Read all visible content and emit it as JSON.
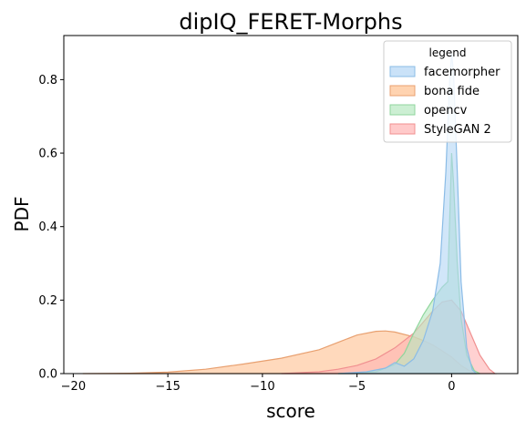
{
  "chart_data": {
    "type": "area",
    "title": "dipIQ_FERET-Morphs",
    "xlabel": "score",
    "ylabel": "PDF",
    "xlim": [
      -20.5,
      3.5
    ],
    "ylim": [
      0,
      0.92
    ],
    "xticks": [
      -20,
      -15,
      -10,
      -5,
      0
    ],
    "yticks": [
      0.0,
      0.2,
      0.4,
      0.6,
      0.8
    ],
    "xtick_labels": [
      "−20",
      "−15",
      "−10",
      "−5",
      "0"
    ],
    "ytick_labels": [
      "0.0",
      "0.2",
      "0.4",
      "0.6",
      "0.8"
    ],
    "legend": {
      "title": "legend",
      "position": "top-right"
    },
    "series": [
      {
        "name": "bona fide",
        "fill": "#ffc08f",
        "stroke": "#e8a070",
        "points": [
          [
            -19.5,
            0
          ],
          [
            -17,
            0.001
          ],
          [
            -15,
            0.004
          ],
          [
            -13,
            0.012
          ],
          [
            -11,
            0.026
          ],
          [
            -9,
            0.042
          ],
          [
            -7,
            0.065
          ],
          [
            -6,
            0.085
          ],
          [
            -5,
            0.105
          ],
          [
            -4,
            0.115
          ],
          [
            -3.5,
            0.116
          ],
          [
            -3,
            0.113
          ],
          [
            -2,
            0.1
          ],
          [
            -1.5,
            0.09
          ],
          [
            -1,
            0.078
          ],
          [
            -0.5,
            0.062
          ],
          [
            0,
            0.045
          ],
          [
            0.5,
            0.022
          ],
          [
            1,
            0.006
          ],
          [
            1.3,
            0
          ]
        ]
      },
      {
        "name": "StyleGAN 2",
        "fill": "#ffb3b3",
        "stroke": "#f09090",
        "points": [
          [
            -9,
            0
          ],
          [
            -7,
            0.005
          ],
          [
            -6,
            0.012
          ],
          [
            -5,
            0.022
          ],
          [
            -4,
            0.04
          ],
          [
            -3,
            0.07
          ],
          [
            -2,
            0.11
          ],
          [
            -1.5,
            0.14
          ],
          [
            -1,
            0.17
          ],
          [
            -0.5,
            0.195
          ],
          [
            0,
            0.2
          ],
          [
            0.5,
            0.17
          ],
          [
            1,
            0.11
          ],
          [
            1.5,
            0.05
          ],
          [
            2,
            0.012
          ],
          [
            2.3,
            0
          ]
        ]
      },
      {
        "name": "opencv",
        "fill": "#b6e8c0",
        "stroke": "#8fd69c",
        "points": [
          [
            -6,
            0
          ],
          [
            -4,
            0.005
          ],
          [
            -3,
            0.025
          ],
          [
            -2.5,
            0.055
          ],
          [
            -2,
            0.11
          ],
          [
            -1.5,
            0.16
          ],
          [
            -1,
            0.2
          ],
          [
            -0.5,
            0.235
          ],
          [
            -0.2,
            0.25
          ],
          [
            -0.1,
            0.42
          ],
          [
            0,
            0.6
          ],
          [
            0.1,
            0.52
          ],
          [
            0.3,
            0.3
          ],
          [
            0.5,
            0.15
          ],
          [
            0.8,
            0.05
          ],
          [
            1.2,
            0.008
          ],
          [
            1.5,
            0
          ]
        ]
      },
      {
        "name": "facemorpher",
        "fill": "#b3d6f5",
        "stroke": "#8bbce6",
        "points": [
          [
            -6,
            0
          ],
          [
            -4.5,
            0.005
          ],
          [
            -3.5,
            0.015
          ],
          [
            -3,
            0.03
          ],
          [
            -2.5,
            0.02
          ],
          [
            -2,
            0.04
          ],
          [
            -1.5,
            0.09
          ],
          [
            -1,
            0.17
          ],
          [
            -0.6,
            0.3
          ],
          [
            -0.3,
            0.55
          ],
          [
            -0.1,
            0.8
          ],
          [
            0,
            0.87
          ],
          [
            0.1,
            0.82
          ],
          [
            0.3,
            0.55
          ],
          [
            0.5,
            0.25
          ],
          [
            0.8,
            0.07
          ],
          [
            1.1,
            0.01
          ],
          [
            1.3,
            0
          ]
        ]
      }
    ],
    "legend_order": [
      "facemorpher",
      "bona fide",
      "opencv",
      "StyleGAN 2"
    ]
  }
}
